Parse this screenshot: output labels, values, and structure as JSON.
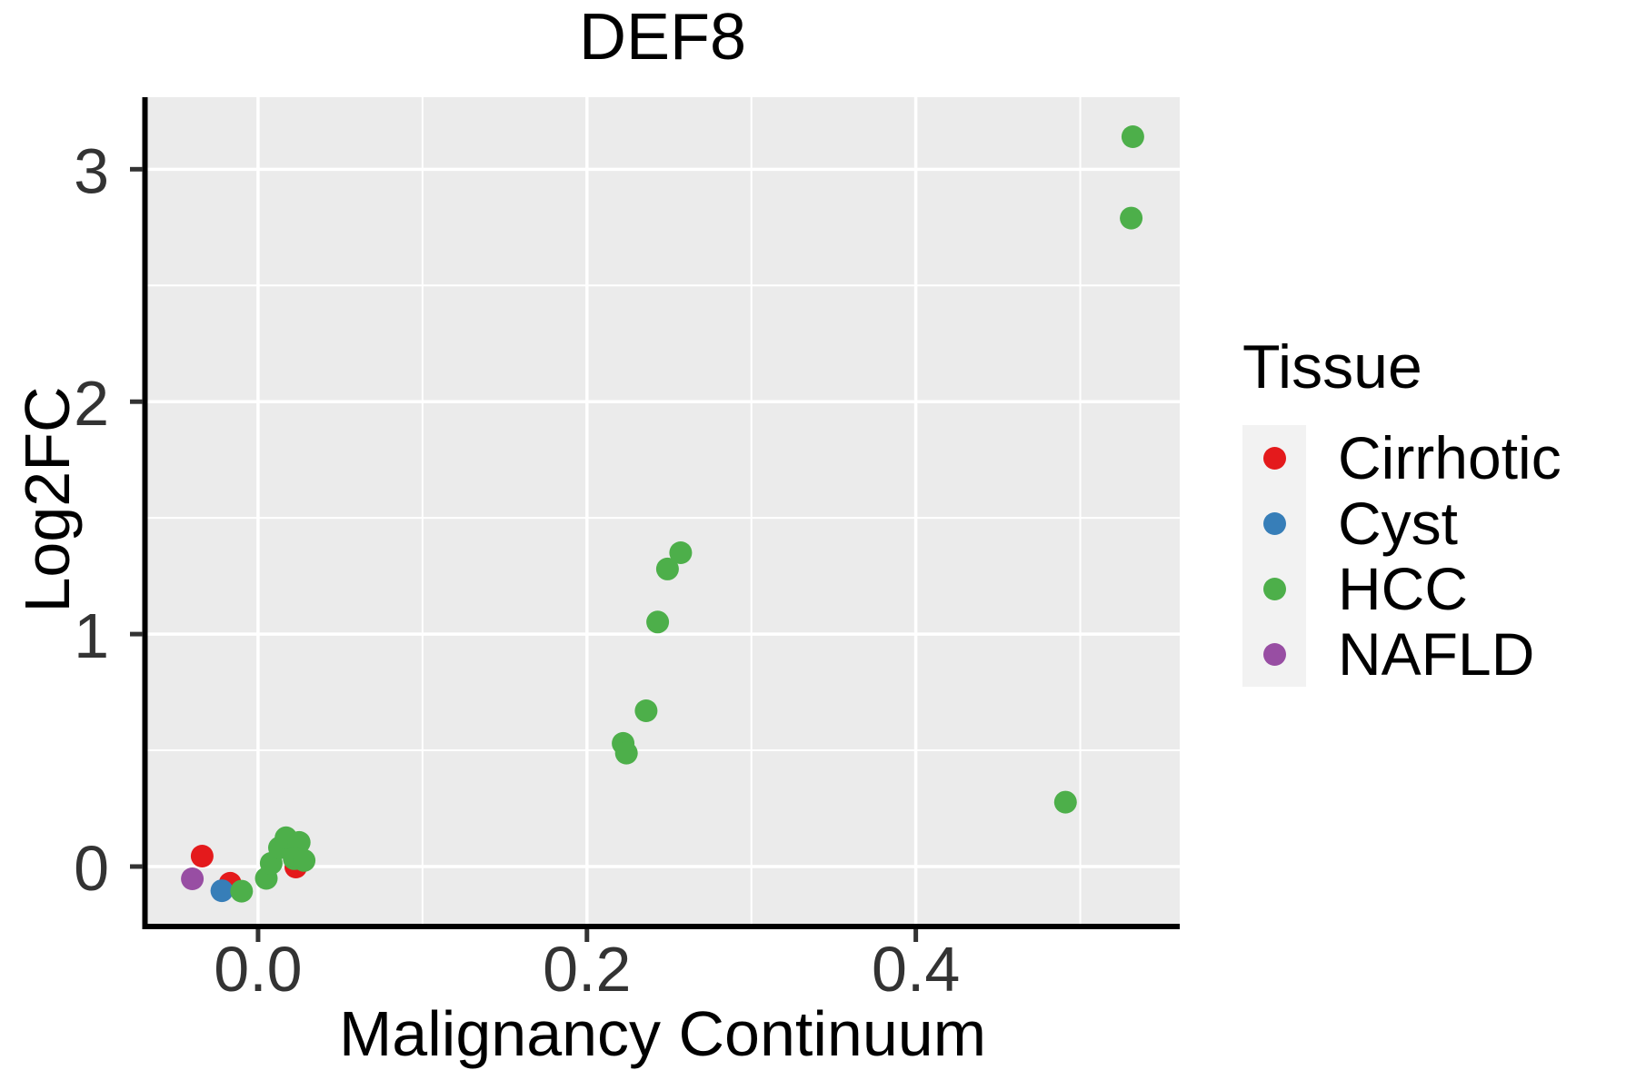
{
  "figure": {
    "title": "DEF8"
  },
  "axes": {
    "x": {
      "label": "Malignancy Continuum",
      "tick_labels": [
        "0.0",
        "0.2",
        "0.4"
      ]
    },
    "y": {
      "label": "Log2FC",
      "tick_labels": [
        "0",
        "1",
        "2",
        "3"
      ]
    }
  },
  "legend": {
    "title": "Tissue",
    "items": [
      {
        "label": "Cirrhotic",
        "color": "#E41A1C"
      },
      {
        "label": "Cyst",
        "color": "#377EB8"
      },
      {
        "label": "HCC",
        "color": "#4DAF4A"
      },
      {
        "label": "NAFLD",
        "color": "#984EA3"
      }
    ]
  },
  "style": {
    "panel_bg": "#EBEBEB",
    "grid_color": "#FFFFFF",
    "axis_color": "#000000",
    "tick_color": "#333333",
    "tick_text_color": "#333333",
    "legend_key_bg": "#F2F2F2"
  },
  "chart_data": {
    "type": "scatter",
    "title": "DEF8",
    "xlabel": "Malignancy Continuum",
    "ylabel": "Log2FC",
    "xlim": [
      -0.0685,
      0.5605
    ],
    "ylim": [
      -0.258,
      3.31
    ],
    "x_ticks": [
      {
        "value": 0.0,
        "label": "0.0"
      },
      {
        "value": 0.2,
        "label": "0.2"
      },
      {
        "value": 0.4,
        "label": "0.4"
      }
    ],
    "y_ticks": [
      {
        "value": 0,
        "label": "0"
      },
      {
        "value": 1,
        "label": "1"
      },
      {
        "value": 2,
        "label": "2"
      },
      {
        "value": 3,
        "label": "3"
      }
    ],
    "x_minor": [
      0.1,
      0.3,
      0.5
    ],
    "y_minor": [
      0.5,
      1.5,
      2.5
    ],
    "grid": "on",
    "legend_title": "Tissue",
    "legend_position": "right",
    "series": [
      {
        "name": "Cirrhotic",
        "color": "#E41A1C",
        "points": [
          [
            -0.034,
            0.045
          ],
          [
            -0.017,
            -0.072
          ],
          [
            0.023,
            -0.002
          ]
        ]
      },
      {
        "name": "NAFLD",
        "color": "#984EA3",
        "points": [
          [
            -0.04,
            -0.053
          ]
        ]
      },
      {
        "name": "Cyst",
        "color": "#377EB8",
        "points": [
          [
            -0.022,
            -0.104
          ]
        ]
      },
      {
        "name": "HCC",
        "color": "#4DAF4A",
        "points": [
          [
            -0.01,
            -0.106
          ],
          [
            0.005,
            -0.051
          ],
          [
            0.008,
            0.014
          ],
          [
            0.013,
            0.081
          ],
          [
            0.017,
            0.124
          ],
          [
            0.025,
            0.104
          ],
          [
            0.022,
            0.034
          ],
          [
            0.028,
            0.026
          ],
          [
            0.222,
            0.53
          ],
          [
            0.224,
            0.488
          ],
          [
            0.236,
            0.67
          ],
          [
            0.243,
            1.052
          ],
          [
            0.249,
            1.28
          ],
          [
            0.257,
            1.35
          ],
          [
            0.491,
            0.277
          ],
          [
            0.531,
            2.79
          ],
          [
            0.532,
            3.14
          ]
        ]
      }
    ]
  }
}
